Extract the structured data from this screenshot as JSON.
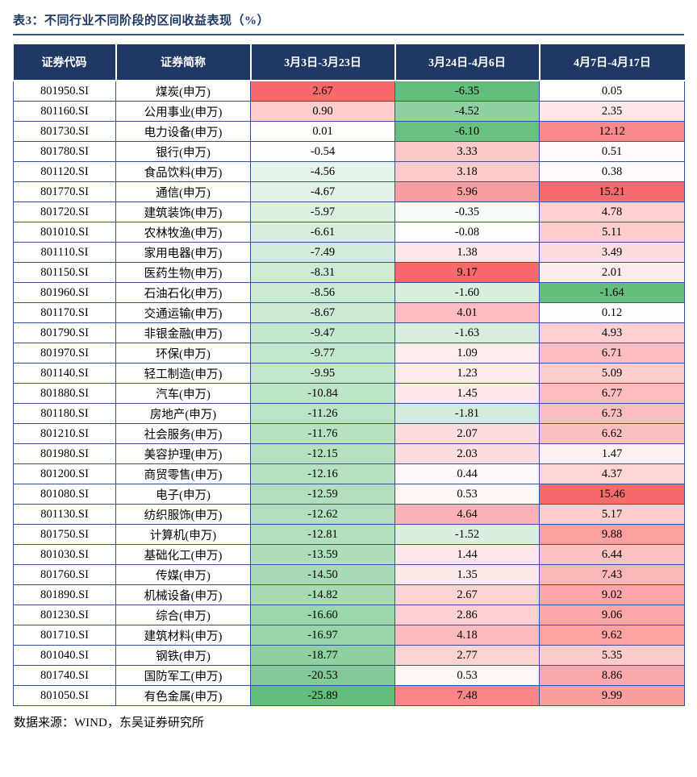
{
  "title": "表3：不同行业不同阶段的区间收益表现（%）",
  "source_note": "数据来源：WIND，东吴证券研究所",
  "colors": {
    "title": "#1F3864",
    "rule": "#2E5496",
    "header_bg": "#1F3864",
    "header_text": "#FFFFFF",
    "grid": "#35509E",
    "heatmap_max": "#F8696B",
    "heatmap_mid": "#FFFFFF",
    "heatmap_min": "#63BE7B"
  },
  "chart_data": {
    "type": "table",
    "subtype": "heatmap",
    "conditional_formatting": "red-white-green 3-color scale applied per numeric column, midpoint 0: positive values shade toward red in proportion to column max, negative values shade toward green in proportion to column min",
    "columns": [
      "证券代码",
      "证券简称",
      "3月3日-3月23日",
      "3月24日-4月6日",
      "4月7日-4月17日"
    ],
    "rows": [
      [
        "801950.SI",
        "煤炭(申万)",
        2.67,
        -6.35,
        0.05
      ],
      [
        "801160.SI",
        "公用事业(申万)",
        0.9,
        -4.52,
        2.35
      ],
      [
        "801730.SI",
        "电力设备(申万)",
        0.01,
        -6.1,
        12.12
      ],
      [
        "801780.SI",
        "银行(申万)",
        -0.54,
        3.33,
        0.51
      ],
      [
        "801120.SI",
        "食品饮料(申万)",
        -4.56,
        3.18,
        0.38
      ],
      [
        "801770.SI",
        "通信(申万)",
        -4.67,
        5.96,
        15.21
      ],
      [
        "801720.SI",
        "建筑装饰(申万)",
        -5.97,
        -0.35,
        4.78
      ],
      [
        "801010.SI",
        "农林牧渔(申万)",
        -6.61,
        -0.08,
        5.11
      ],
      [
        "801110.SI",
        "家用电器(申万)",
        -7.49,
        1.38,
        3.49
      ],
      [
        "801150.SI",
        "医药生物(申万)",
        -8.31,
        9.17,
        2.01
      ],
      [
        "801960.SI",
        "石油石化(申万)",
        -8.56,
        -1.6,
        -1.64
      ],
      [
        "801170.SI",
        "交通运输(申万)",
        -8.67,
        4.01,
        0.12
      ],
      [
        "801790.SI",
        "非银金融(申万)",
        -9.47,
        -1.63,
        4.93
      ],
      [
        "801970.SI",
        "环保(申万)",
        -9.77,
        1.09,
        6.71
      ],
      [
        "801140.SI",
        "轻工制造(申万)",
        -9.95,
        1.23,
        5.09
      ],
      [
        "801880.SI",
        "汽车(申万)",
        -10.84,
        1.45,
        6.77
      ],
      [
        "801180.SI",
        "房地产(申万)",
        -11.26,
        -1.81,
        6.73
      ],
      [
        "801210.SI",
        "社会服务(申万)",
        -11.76,
        2.07,
        6.62
      ],
      [
        "801980.SI",
        "美容护理(申万)",
        -12.15,
        2.03,
        1.47
      ],
      [
        "801200.SI",
        "商贸零售(申万)",
        -12.16,
        0.44,
        4.37
      ],
      [
        "801080.SI",
        "电子(申万)",
        -12.59,
        0.53,
        15.46
      ],
      [
        "801130.SI",
        "纺织服饰(申万)",
        -12.62,
        4.64,
        5.17
      ],
      [
        "801750.SI",
        "计算机(申万)",
        -12.81,
        -1.52,
        9.88
      ],
      [
        "801030.SI",
        "基础化工(申万)",
        -13.59,
        1.44,
        6.44
      ],
      [
        "801760.SI",
        "传媒(申万)",
        -14.5,
        1.35,
        7.43
      ],
      [
        "801890.SI",
        "机械设备(申万)",
        -14.82,
        2.67,
        9.02
      ],
      [
        "801230.SI",
        "综合(申万)",
        -16.6,
        2.86,
        9.06
      ],
      [
        "801710.SI",
        "建筑材料(申万)",
        -16.97,
        4.18,
        9.62
      ],
      [
        "801040.SI",
        "钢铁(申万)",
        -18.77,
        2.77,
        5.35
      ],
      [
        "801740.SI",
        "国防军工(申万)",
        -20.53,
        0.53,
        8.86
      ],
      [
        "801050.SI",
        "有色金属(申万)",
        -25.89,
        7.48,
        9.99
      ]
    ]
  }
}
